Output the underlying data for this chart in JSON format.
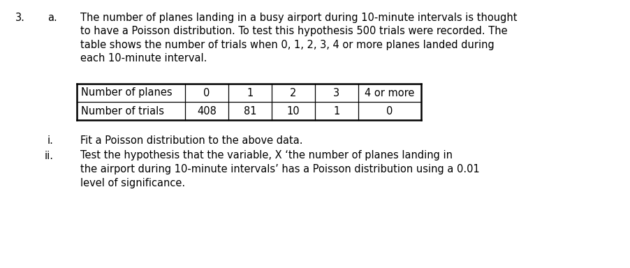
{
  "question_number": "3.",
  "part_label": "a.",
  "paragraph_lines": [
    "The number of planes landing in a busy airport during 10-minute intervals is thought",
    "to have a Poisson distribution. To test this hypothesis 500 trials were recorded. The",
    "table shows the number of trials when 0, 1, 2, 3, 4 or more planes landed during",
    "each 10-minute interval."
  ],
  "table_headers": [
    "Number of planes",
    "0",
    "1",
    "2",
    "3",
    "4 or more"
  ],
  "table_row2_label": "Number of trials",
  "table_row2_values": [
    "408",
    "81",
    "10",
    "1",
    "0"
  ],
  "sub_i_text": "Fit a Poisson distribution to the above data.",
  "sub_ii_text_lines": [
    "Test the hypothesis that the variable, X ‘the number of planes landing in",
    "the airport during 10-minute intervals’ has a Poisson distribution using a 0.01",
    "level of significance."
  ],
  "font_size": 10.5,
  "font_family": "DejaVu Sans",
  "bg_color": "#ffffff",
  "text_color": "#000000",
  "table_border_color": "#000000",
  "fig_width": 9.03,
  "fig_height": 3.84,
  "dpi": 100
}
